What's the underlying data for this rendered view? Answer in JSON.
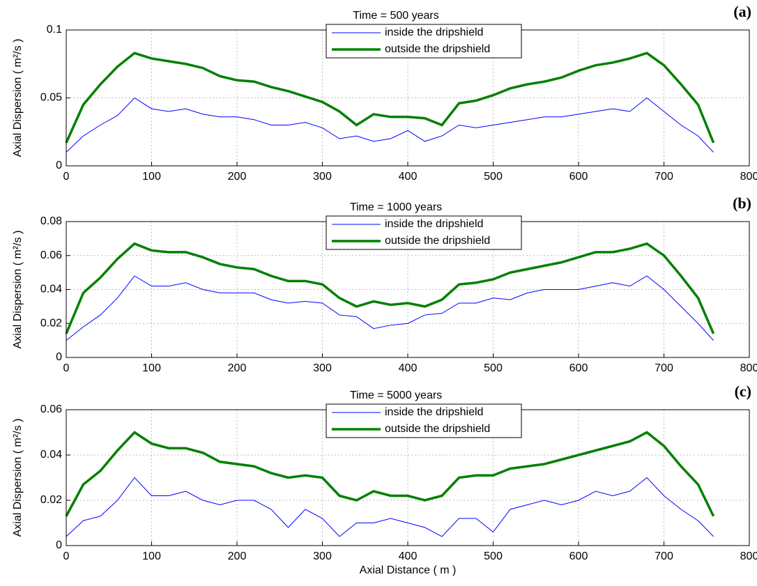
{
  "chart_data": [
    {
      "type": "line",
      "title": "Time = 500 years",
      "panel_label": "(a)",
      "ylabel": "Axial Dispersion ( m²/s )",
      "x": [
        0,
        20,
        40,
        60,
        80,
        100,
        120,
        140,
        160,
        180,
        200,
        220,
        240,
        260,
        280,
        300,
        320,
        340,
        360,
        380,
        400,
        420,
        440,
        460,
        480,
        500,
        520,
        540,
        560,
        580,
        600,
        620,
        640,
        660,
        680,
        700,
        720,
        740,
        758
      ],
      "series": [
        {
          "name": "inside the dripshield",
          "color": "#0000ff",
          "values": [
            0.01,
            0.022,
            0.03,
            0.037,
            0.05,
            0.042,
            0.04,
            0.042,
            0.038,
            0.036,
            0.036,
            0.034,
            0.03,
            0.03,
            0.032,
            0.028,
            0.02,
            0.022,
            0.018,
            0.02,
            0.026,
            0.018,
            0.022,
            0.03,
            0.028,
            0.03,
            0.032,
            0.034,
            0.036,
            0.036,
            0.038,
            0.04,
            0.042,
            0.04,
            0.05,
            0.04,
            0.03,
            0.022,
            0.01
          ]
        },
        {
          "name": "outside the dripshield",
          "color": "#008000",
          "values": [
            0.017,
            0.045,
            0.06,
            0.073,
            0.083,
            0.079,
            0.077,
            0.075,
            0.072,
            0.066,
            0.063,
            0.062,
            0.058,
            0.055,
            0.051,
            0.047,
            0.04,
            0.03,
            0.038,
            0.036,
            0.036,
            0.035,
            0.03,
            0.046,
            0.048,
            0.052,
            0.057,
            0.06,
            0.062,
            0.065,
            0.07,
            0.074,
            0.076,
            0.079,
            0.083,
            0.074,
            0.06,
            0.045,
            0.017
          ]
        }
      ],
      "xlim": [
        0,
        800
      ],
      "xticks": [
        0,
        100,
        200,
        300,
        400,
        500,
        600,
        700,
        800
      ],
      "ylim": [
        0,
        0.1
      ],
      "yticks": [
        0,
        0.05,
        0.1
      ],
      "grid": true,
      "legend": "upper center"
    },
    {
      "type": "line",
      "title": "Time = 1000 years",
      "panel_label": "(b)",
      "ylabel": "Axial Dispersion ( m²/s )",
      "x": [
        0,
        20,
        40,
        60,
        80,
        100,
        120,
        140,
        160,
        180,
        200,
        220,
        240,
        260,
        280,
        300,
        320,
        340,
        360,
        380,
        400,
        420,
        440,
        460,
        480,
        500,
        520,
        540,
        560,
        580,
        600,
        620,
        640,
        660,
        680,
        700,
        720,
        740,
        758
      ],
      "series": [
        {
          "name": "inside the dripshield",
          "color": "#0000ff",
          "values": [
            0.01,
            0.018,
            0.025,
            0.035,
            0.048,
            0.042,
            0.042,
            0.044,
            0.04,
            0.038,
            0.038,
            0.038,
            0.034,
            0.032,
            0.033,
            0.032,
            0.025,
            0.024,
            0.017,
            0.019,
            0.02,
            0.025,
            0.026,
            0.032,
            0.032,
            0.035,
            0.034,
            0.038,
            0.04,
            0.04,
            0.04,
            0.042,
            0.044,
            0.042,
            0.048,
            0.04,
            0.03,
            0.02,
            0.01
          ]
        },
        {
          "name": "outside the dripshield",
          "color": "#008000",
          "values": [
            0.014,
            0.038,
            0.047,
            0.058,
            0.067,
            0.063,
            0.062,
            0.062,
            0.059,
            0.055,
            0.053,
            0.052,
            0.048,
            0.045,
            0.045,
            0.043,
            0.035,
            0.03,
            0.033,
            0.031,
            0.032,
            0.03,
            0.034,
            0.043,
            0.044,
            0.046,
            0.05,
            0.052,
            0.054,
            0.056,
            0.059,
            0.062,
            0.062,
            0.064,
            0.067,
            0.06,
            0.048,
            0.035,
            0.014
          ]
        }
      ],
      "xlim": [
        0,
        800
      ],
      "xticks": [
        0,
        100,
        200,
        300,
        400,
        500,
        600,
        700,
        800
      ],
      "ylim": [
        0,
        0.08
      ],
      "yticks": [
        0,
        0.02,
        0.04,
        0.06,
        0.08
      ],
      "grid": true,
      "legend": "upper center"
    },
    {
      "type": "line",
      "title": "Time = 5000 years",
      "panel_label": "(c)",
      "ylabel": "Axial Dispersion ( m²/s )",
      "xlabel": "Axial Distance ( m )",
      "x": [
        0,
        20,
        40,
        60,
        80,
        100,
        120,
        140,
        160,
        180,
        200,
        220,
        240,
        260,
        280,
        300,
        320,
        340,
        360,
        380,
        400,
        420,
        440,
        460,
        480,
        500,
        520,
        540,
        560,
        580,
        600,
        620,
        640,
        660,
        680,
        700,
        720,
        740,
        758
      ],
      "series": [
        {
          "name": "inside the dripshield",
          "color": "#0000ff",
          "values": [
            0.004,
            0.011,
            0.013,
            0.02,
            0.03,
            0.022,
            0.022,
            0.024,
            0.02,
            0.018,
            0.02,
            0.02,
            0.016,
            0.008,
            0.016,
            0.012,
            0.004,
            0.01,
            0.01,
            0.012,
            0.01,
            0.008,
            0.004,
            0.012,
            0.012,
            0.006,
            0.016,
            0.018,
            0.02,
            0.018,
            0.02,
            0.024,
            0.022,
            0.024,
            0.03,
            0.022,
            0.016,
            0.011,
            0.004
          ]
        },
        {
          "name": "outside the dripshield",
          "color": "#008000",
          "values": [
            0.013,
            0.027,
            0.033,
            0.042,
            0.05,
            0.045,
            0.043,
            0.043,
            0.041,
            0.037,
            0.036,
            0.035,
            0.032,
            0.03,
            0.031,
            0.03,
            0.022,
            0.02,
            0.024,
            0.022,
            0.022,
            0.02,
            0.022,
            0.03,
            0.031,
            0.031,
            0.034,
            0.035,
            0.036,
            0.038,
            0.04,
            0.042,
            0.044,
            0.046,
            0.05,
            0.044,
            0.035,
            0.027,
            0.013
          ]
        }
      ],
      "xlim": [
        0,
        800
      ],
      "xticks": [
        0,
        100,
        200,
        300,
        400,
        500,
        600,
        700,
        800
      ],
      "ylim": [
        0,
        0.06
      ],
      "yticks": [
        0,
        0.02,
        0.04,
        0.06
      ],
      "grid": true,
      "legend": "upper center"
    }
  ]
}
